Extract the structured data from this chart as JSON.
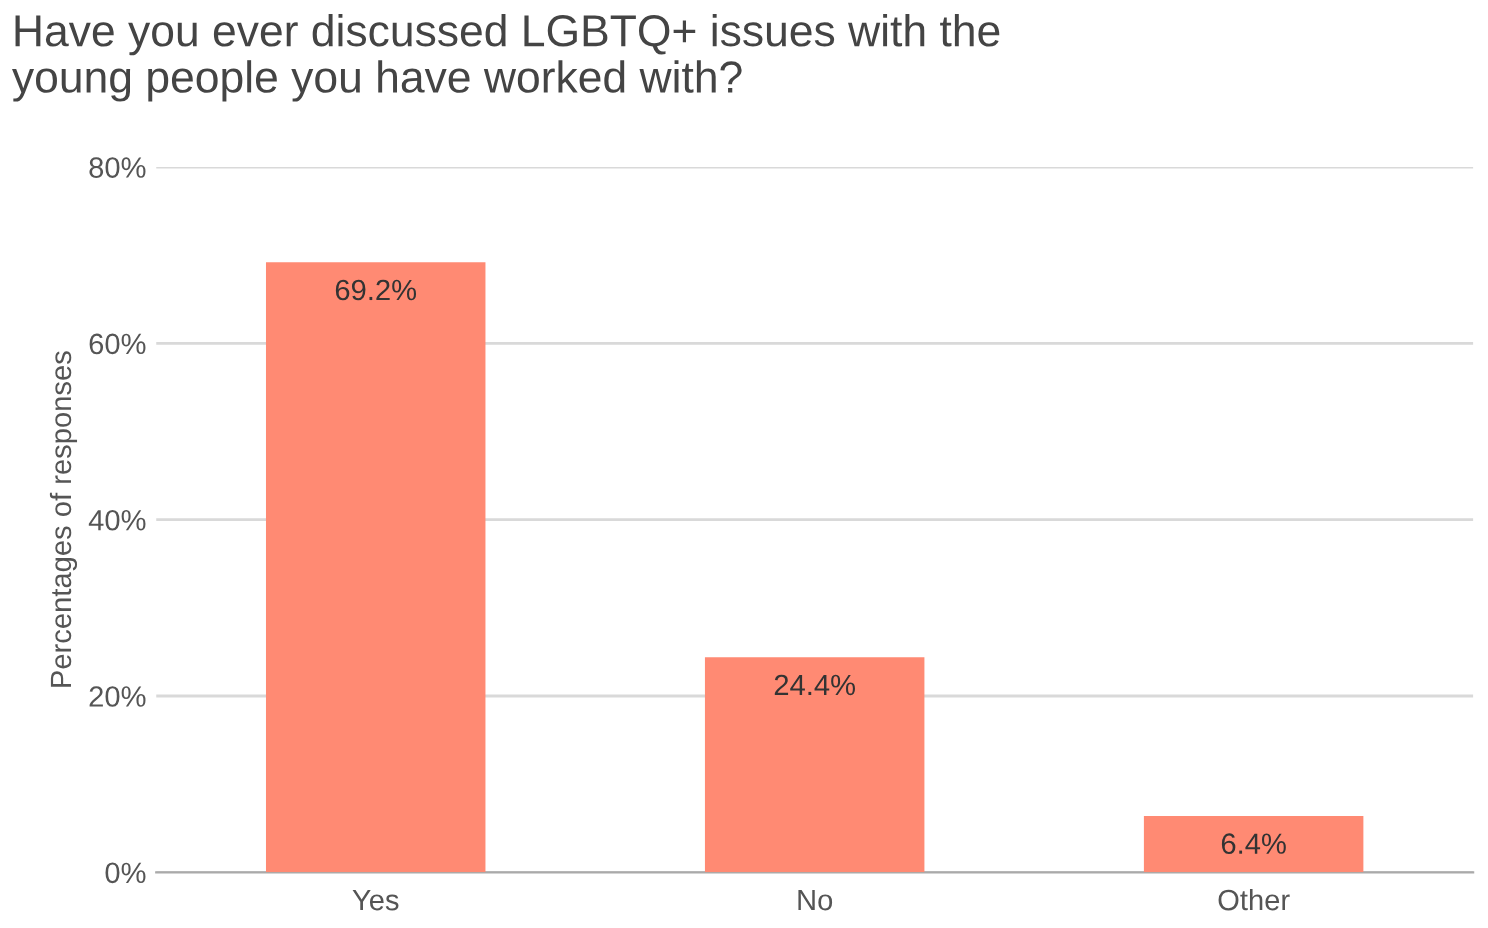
{
  "chart_data": {
    "type": "bar",
    "title": "Have you ever discussed LGBTQ+ issues with the\nyoung people you have worked with?",
    "ylabel": "Percentages of responses",
    "categories": [
      "Yes",
      "No",
      "Other"
    ],
    "values": [
      69.2,
      24.4,
      6.4
    ],
    "value_labels": [
      "69.2%",
      "24.4%",
      "6.4%"
    ],
    "color": "#ff8a73",
    "ylim": [
      0,
      80
    ],
    "yticks": [
      {
        "value": 0,
        "label": "0%"
      },
      {
        "value": 20,
        "label": "20%"
      },
      {
        "value": 40,
        "label": "40%"
      },
      {
        "value": 60,
        "label": "60%"
      },
      {
        "value": 80,
        "label": "80%"
      }
    ],
    "grid": "y"
  }
}
